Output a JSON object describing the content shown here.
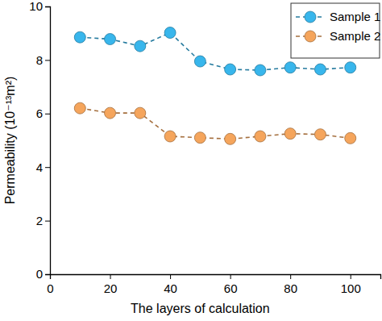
{
  "chart_data": {
    "type": "line",
    "x_label": "The layers of calculation",
    "y_label": "Permeability (10⁻¹³m²)",
    "x": [
      10,
      20,
      30,
      40,
      50,
      60,
      70,
      80,
      90,
      100
    ],
    "series": [
      {
        "name": "Sample 1",
        "color": "#38b6ec",
        "marker": "circle",
        "line_style": "dashed",
        "values": [
          8.85,
          8.78,
          8.52,
          9.02,
          7.95,
          7.65,
          7.62,
          7.72,
          7.65,
          7.72
        ]
      },
      {
        "name": "Sample 2",
        "color": "#f5a55c",
        "marker": "circle",
        "line_style": "dashed",
        "values": [
          6.2,
          6.02,
          6.02,
          5.15,
          5.1,
          5.05,
          5.15,
          5.25,
          5.22,
          5.08
        ]
      }
    ],
    "xlim": [
      0,
      110
    ],
    "xticks": [
      0,
      20,
      40,
      60,
      80,
      100
    ],
    "ylim": [
      0,
      10
    ],
    "yticks": [
      0,
      2,
      4,
      6,
      8,
      10
    ],
    "grid": false,
    "legend": "upper right"
  }
}
